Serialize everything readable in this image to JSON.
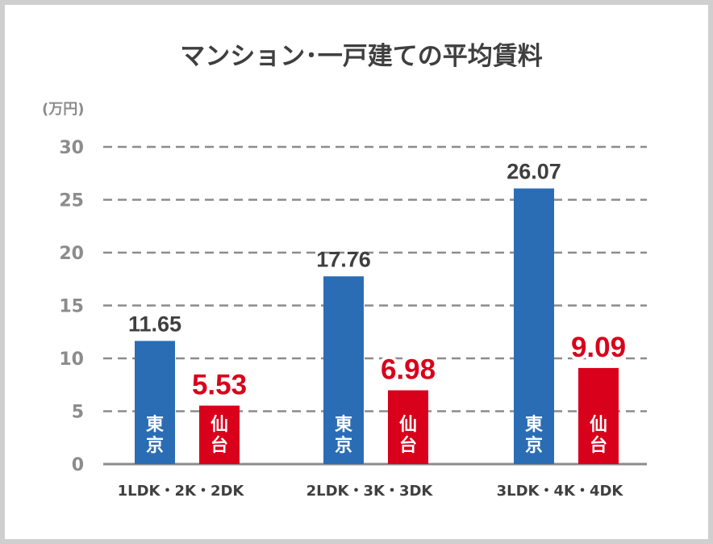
{
  "chart_data": {
    "type": "bar",
    "title": "マンション･一戸建ての平均賃料",
    "unit_label": "(万円)",
    "xlabel": "",
    "ylabel": "",
    "ylim": [
      0,
      30
    ],
    "y_ticks": [
      "0",
      "5",
      "10",
      "15",
      "20",
      "25",
      "30"
    ],
    "grid": true,
    "categories": [
      "1LDK・2K・2DK",
      "2LDK・3K・3DK",
      "3LDK・4K・4DK"
    ],
    "series": [
      {
        "name": "東京",
        "values": [
          11.65,
          17.76,
          26.07
        ],
        "labels": [
          "11.65",
          "17.76",
          "26.07"
        ],
        "color": "#2a6db5"
      },
      {
        "name": "仙台",
        "values": [
          5.53,
          6.98,
          9.09
        ],
        "labels": [
          "5.53",
          "6.98",
          "9.09"
        ],
        "color": "#d9001b"
      }
    ]
  },
  "colors": {
    "label_dark": "#3f3f3f",
    "axis_text": "#8c8c8c",
    "grid": "#8c8c8c",
    "highlight_label": "#d9001b"
  }
}
